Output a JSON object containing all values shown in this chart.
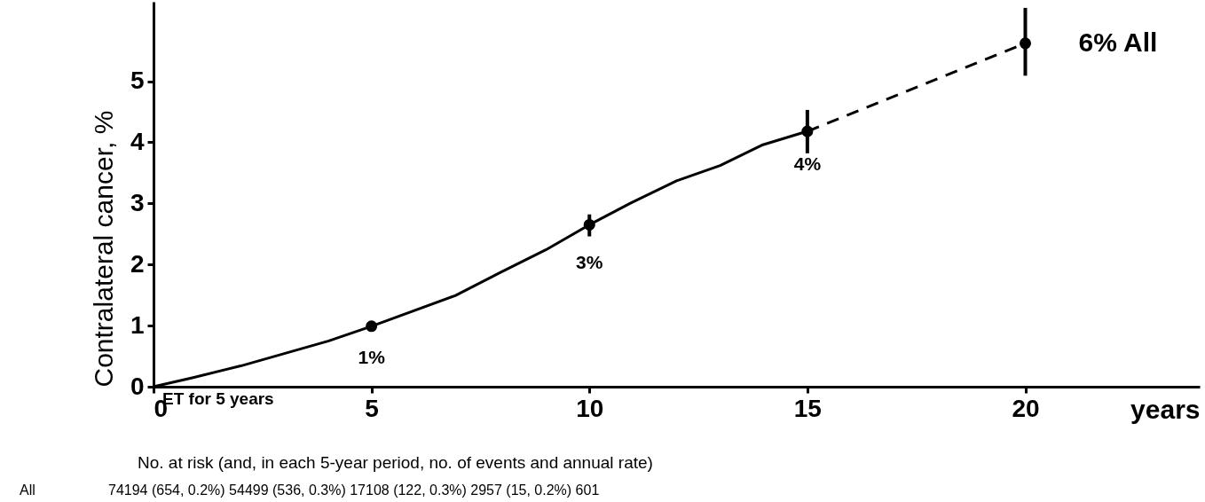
{
  "chart_data": {
    "type": "line",
    "xlabel": "years",
    "ylabel": "Contralateral cancer, %",
    "xlim": [
      0,
      24
    ],
    "xticks": [
      0,
      5,
      10,
      15,
      20
    ],
    "ylim": [
      0,
      6.3
    ],
    "yticks": [
      0,
      1,
      2,
      3,
      4,
      5
    ],
    "grid": false,
    "series": [
      {
        "color": "#000000",
        "line_style": "solid",
        "marker": "none",
        "x": [
          0,
          0.91,
          2.0,
          4.02,
          5,
          6.92,
          7.96,
          9.0,
          10,
          10.96,
          12.0,
          13.0,
          13.98,
          15
        ],
        "values": [
          0,
          0.15,
          0.34,
          0.75,
          0.99,
          1.49,
          1.87,
          2.24,
          2.65,
          3.01,
          3.37,
          3.62,
          3.96,
          4.18
        ]
      },
      {
        "color": "#000000",
        "line_style": "dashed",
        "marker": "none",
        "x": [
          15,
          20
        ],
        "values": [
          4.18,
          5.62
        ]
      },
      {
        "type": "scatter",
        "color": "#000000",
        "marker": "circle",
        "x": [
          5,
          10,
          15,
          20
        ],
        "values": [
          0.99,
          2.65,
          4.18,
          5.62
        ],
        "value_labels": [
          "1%",
          "3%",
          "4%",
          "6% All"
        ],
        "errors": [
          null,
          [
            2.46,
            2.82
          ],
          [
            3.82,
            4.53
          ],
          [
            5.09,
            6.2
          ]
        ]
      }
    ],
    "annotations": [
      "ET for 5 years",
      "No. at risk (and, in each 5-year period, no. of events and annual rate)",
      "All",
      "74194 (654, 0.2%) 54499 (536, 0.3%) 17108 (122, 0.3%) 2957 (15, 0.2%) 601"
    ]
  }
}
